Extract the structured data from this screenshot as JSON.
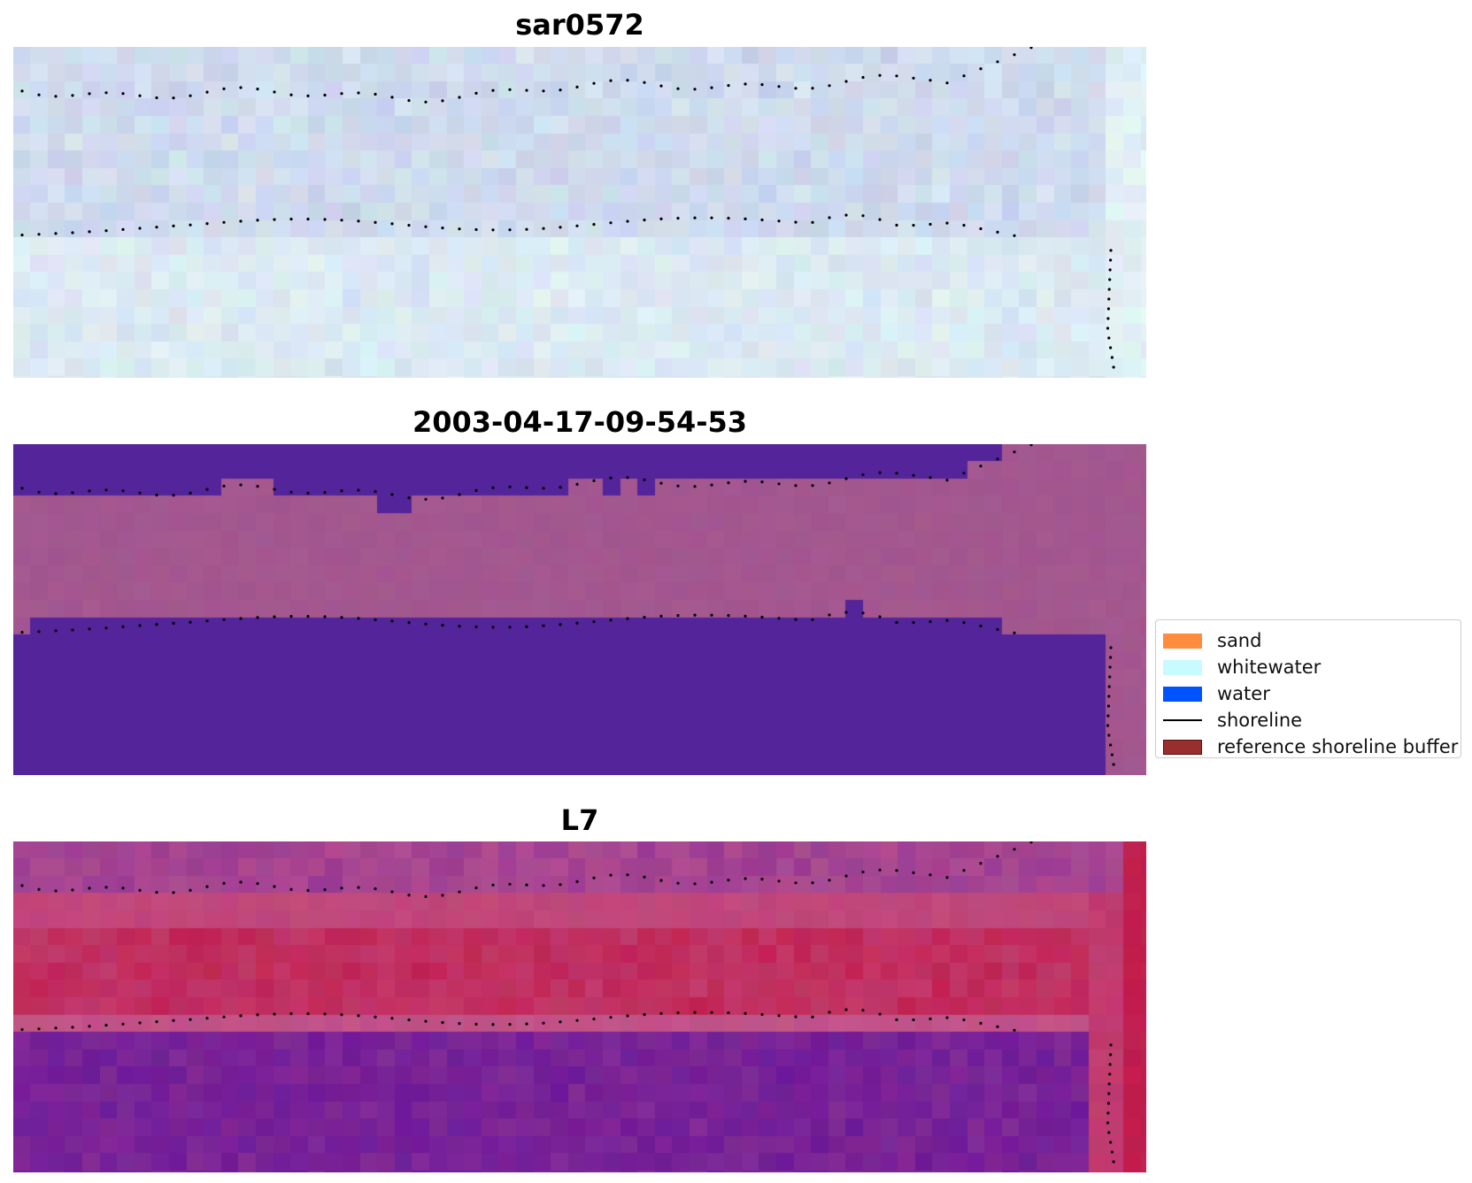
{
  "panels": [
    {
      "title": "sar0572",
      "style": "sar"
    },
    {
      "title": "2003-04-17-09-54-53",
      "style": "classified"
    },
    {
      "title": "L7",
      "style": "index"
    }
  ],
  "legend": {
    "items": [
      {
        "label": "sand",
        "color": "#ff8c3f",
        "kind": "patch"
      },
      {
        "label": "whitewater",
        "color": "#c8fbff",
        "kind": "patch"
      },
      {
        "label": "water",
        "color": "#0054ff",
        "kind": "patch"
      },
      {
        "label": "shoreline",
        "color": "#000000",
        "kind": "line"
      },
      {
        "label": "reference shoreline buffer",
        "color": "#992e2e",
        "kind": "patch-outlined"
      }
    ]
  },
  "colors": {
    "sar_base": "#c6d1ea",
    "sar_light": "#e4f4f6",
    "classified_water": "#53249a",
    "classified_land": "#a3578f",
    "index_purple": "#6e1b98",
    "index_red": "#c11f4e",
    "index_pink": "#c0588e",
    "shoreline": "#000000"
  }
}
